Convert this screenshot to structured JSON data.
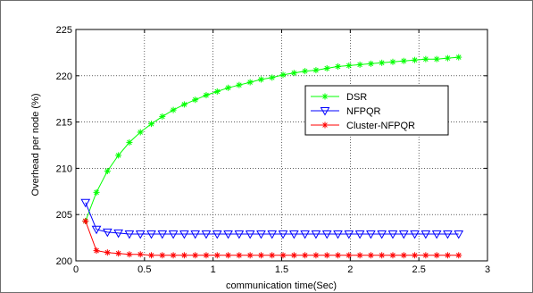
{
  "chart_data": {
    "type": "line",
    "title": "",
    "xlabel": "communication time(Sec)",
    "ylabel": "Overhead per node (%)",
    "xlim": [
      0,
      3
    ],
    "ylim": [
      200,
      225
    ],
    "xticks": [
      "0",
      "0.5",
      "1",
      "1.5",
      "2",
      "2.5",
      "3"
    ],
    "xtick_values": [
      0,
      0.5,
      1,
      1.5,
      2,
      2.5,
      3
    ],
    "yticks": [
      "200",
      "205",
      "210",
      "215",
      "220",
      "225"
    ],
    "ytick_values": [
      200,
      205,
      210,
      215,
      220,
      225
    ],
    "grid": true,
    "legend_position": "right",
    "x": [
      0.07,
      0.15,
      0.23,
      0.31,
      0.39,
      0.47,
      0.55,
      0.63,
      0.71,
      0.79,
      0.87,
      0.95,
      1.03,
      1.11,
      1.19,
      1.27,
      1.35,
      1.43,
      1.51,
      1.59,
      1.67,
      1.75,
      1.83,
      1.91,
      1.99,
      2.07,
      2.15,
      2.23,
      2.31,
      2.39,
      2.47,
      2.55,
      2.63,
      2.71,
      2.79
    ],
    "series": [
      {
        "name": "DSR",
        "color": "#00ff00",
        "marker": "asterisk",
        "values": [
          204.3,
          207.4,
          209.7,
          211.4,
          212.8,
          213.9,
          214.8,
          215.6,
          216.3,
          216.9,
          217.4,
          217.9,
          218.3,
          218.7,
          219.0,
          219.3,
          219.6,
          219.8,
          220.1,
          220.3,
          220.5,
          220.6,
          220.8,
          221.0,
          221.1,
          221.2,
          221.3,
          221.4,
          221.5,
          221.6,
          221.7,
          221.8,
          221.8,
          221.9,
          222.0
        ]
      },
      {
        "name": "NFPQR",
        "color": "#0000ff",
        "marker": "triangle-down",
        "values": [
          206.3,
          203.4,
          203.1,
          203.0,
          202.9,
          202.9,
          202.9,
          202.9,
          202.9,
          202.9,
          202.9,
          202.9,
          202.9,
          202.9,
          202.9,
          202.9,
          202.9,
          202.9,
          202.9,
          202.9,
          202.9,
          202.9,
          202.9,
          202.9,
          202.9,
          202.9,
          202.9,
          202.9,
          202.9,
          202.9,
          202.9,
          202.9,
          202.9,
          202.9,
          202.9
        ]
      },
      {
        "name": "Cluster-NFPQR",
        "color": "#ff0000",
        "marker": "asterisk",
        "values": [
          204.3,
          201.1,
          200.9,
          200.8,
          200.7,
          200.7,
          200.6,
          200.6,
          200.6,
          200.6,
          200.6,
          200.6,
          200.6,
          200.6,
          200.6,
          200.6,
          200.6,
          200.6,
          200.6,
          200.6,
          200.6,
          200.6,
          200.6,
          200.6,
          200.6,
          200.6,
          200.6,
          200.6,
          200.6,
          200.6,
          200.6,
          200.6,
          200.6,
          200.6,
          200.6
        ]
      }
    ]
  }
}
